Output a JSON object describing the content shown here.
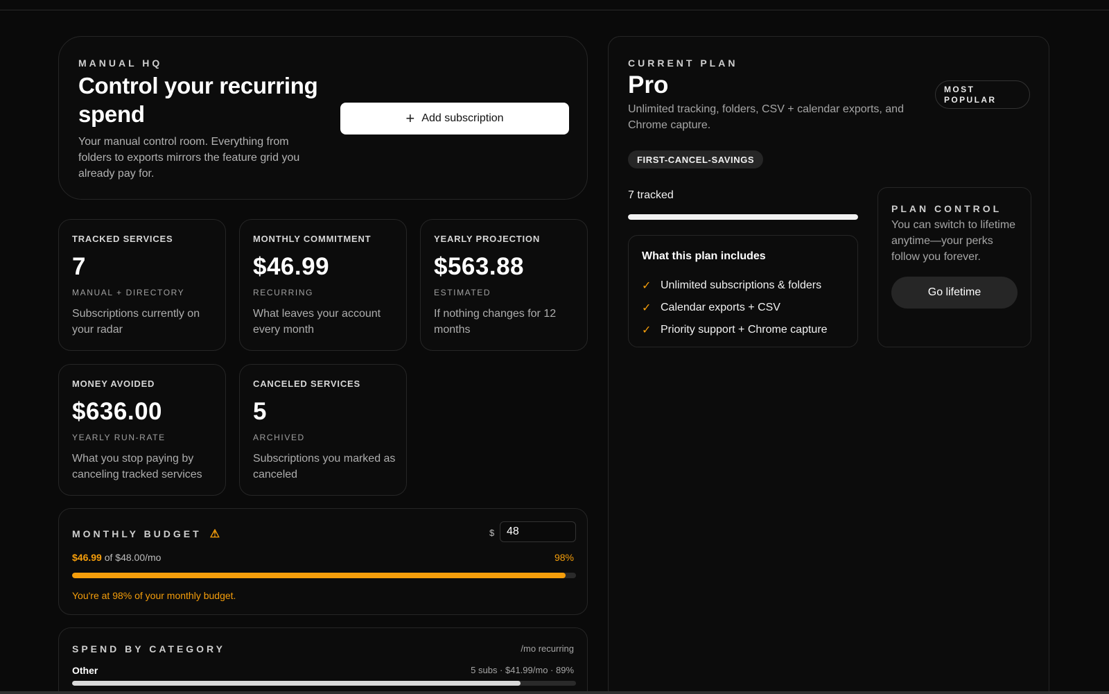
{
  "hero": {
    "eyebrow": "MANUAL HQ",
    "title": "Control your recurring spend",
    "description": "Your manual control room. Everything from folders to exports mirrors the feature grid you already pay for.",
    "add_label": "Add subscription"
  },
  "stats": [
    {
      "label": "TRACKED SERVICES",
      "value": "7",
      "sub": "MANUAL + DIRECTORY",
      "desc": "Subscriptions currently on your radar"
    },
    {
      "label": "MONTHLY COMMITMENT",
      "value": "$46.99",
      "sub": "RECURRING",
      "desc": "What leaves your account every month"
    },
    {
      "label": "YEARLY PROJECTION",
      "value": "$563.88",
      "sub": "ESTIMATED",
      "desc": "If nothing changes for 12 months"
    },
    {
      "label": "MONEY AVOIDED",
      "value": "$636.00",
      "sub": "YEARLY RUN-RATE",
      "desc": "What you stop paying by canceling tracked services"
    },
    {
      "label": "CANCELED SERVICES",
      "value": "5",
      "sub": "ARCHIVED",
      "desc": "Subscriptions you marked as canceled"
    }
  ],
  "budget": {
    "title": "MONTHLY BUDGET",
    "currency": "$",
    "input_value": "48",
    "spent": "$46.99",
    "of_text": "of $48.00/mo",
    "percent_label": "98%",
    "progress": 0.98,
    "message": "You're at 98% of your monthly budget.",
    "accent": "#f59e0b"
  },
  "category": {
    "title": "SPEND BY CATEGORY",
    "right_label": "/mo recurring",
    "items": [
      {
        "name": "Other",
        "meta": "5 subs · $41.99/mo · 89%",
        "progress": 0.89
      }
    ]
  },
  "plan": {
    "eyebrow": "CURRENT PLAN",
    "name": "Pro",
    "description": "Unlimited tracking, folders, CSV + calendar exports, and Chrome capture.",
    "badge": "MOST POPULAR",
    "promo": "FIRST-CANCEL-SAVINGS",
    "tracked": "7 tracked",
    "tracked_progress": 1.0,
    "includes_title": "What this plan includes",
    "includes": [
      "Unlimited subscriptions & folders",
      "Calendar exports + CSV",
      "Priority support + Chrome capture"
    ],
    "control_title": "PLAN CONTROL",
    "control_desc": "You can switch to lifetime anytime—your perks follow you forever.",
    "lifetime_label": "Go lifetime"
  },
  "icons": {
    "add": "plus-icon",
    "warning": "warning-icon",
    "check": "check-icon"
  }
}
